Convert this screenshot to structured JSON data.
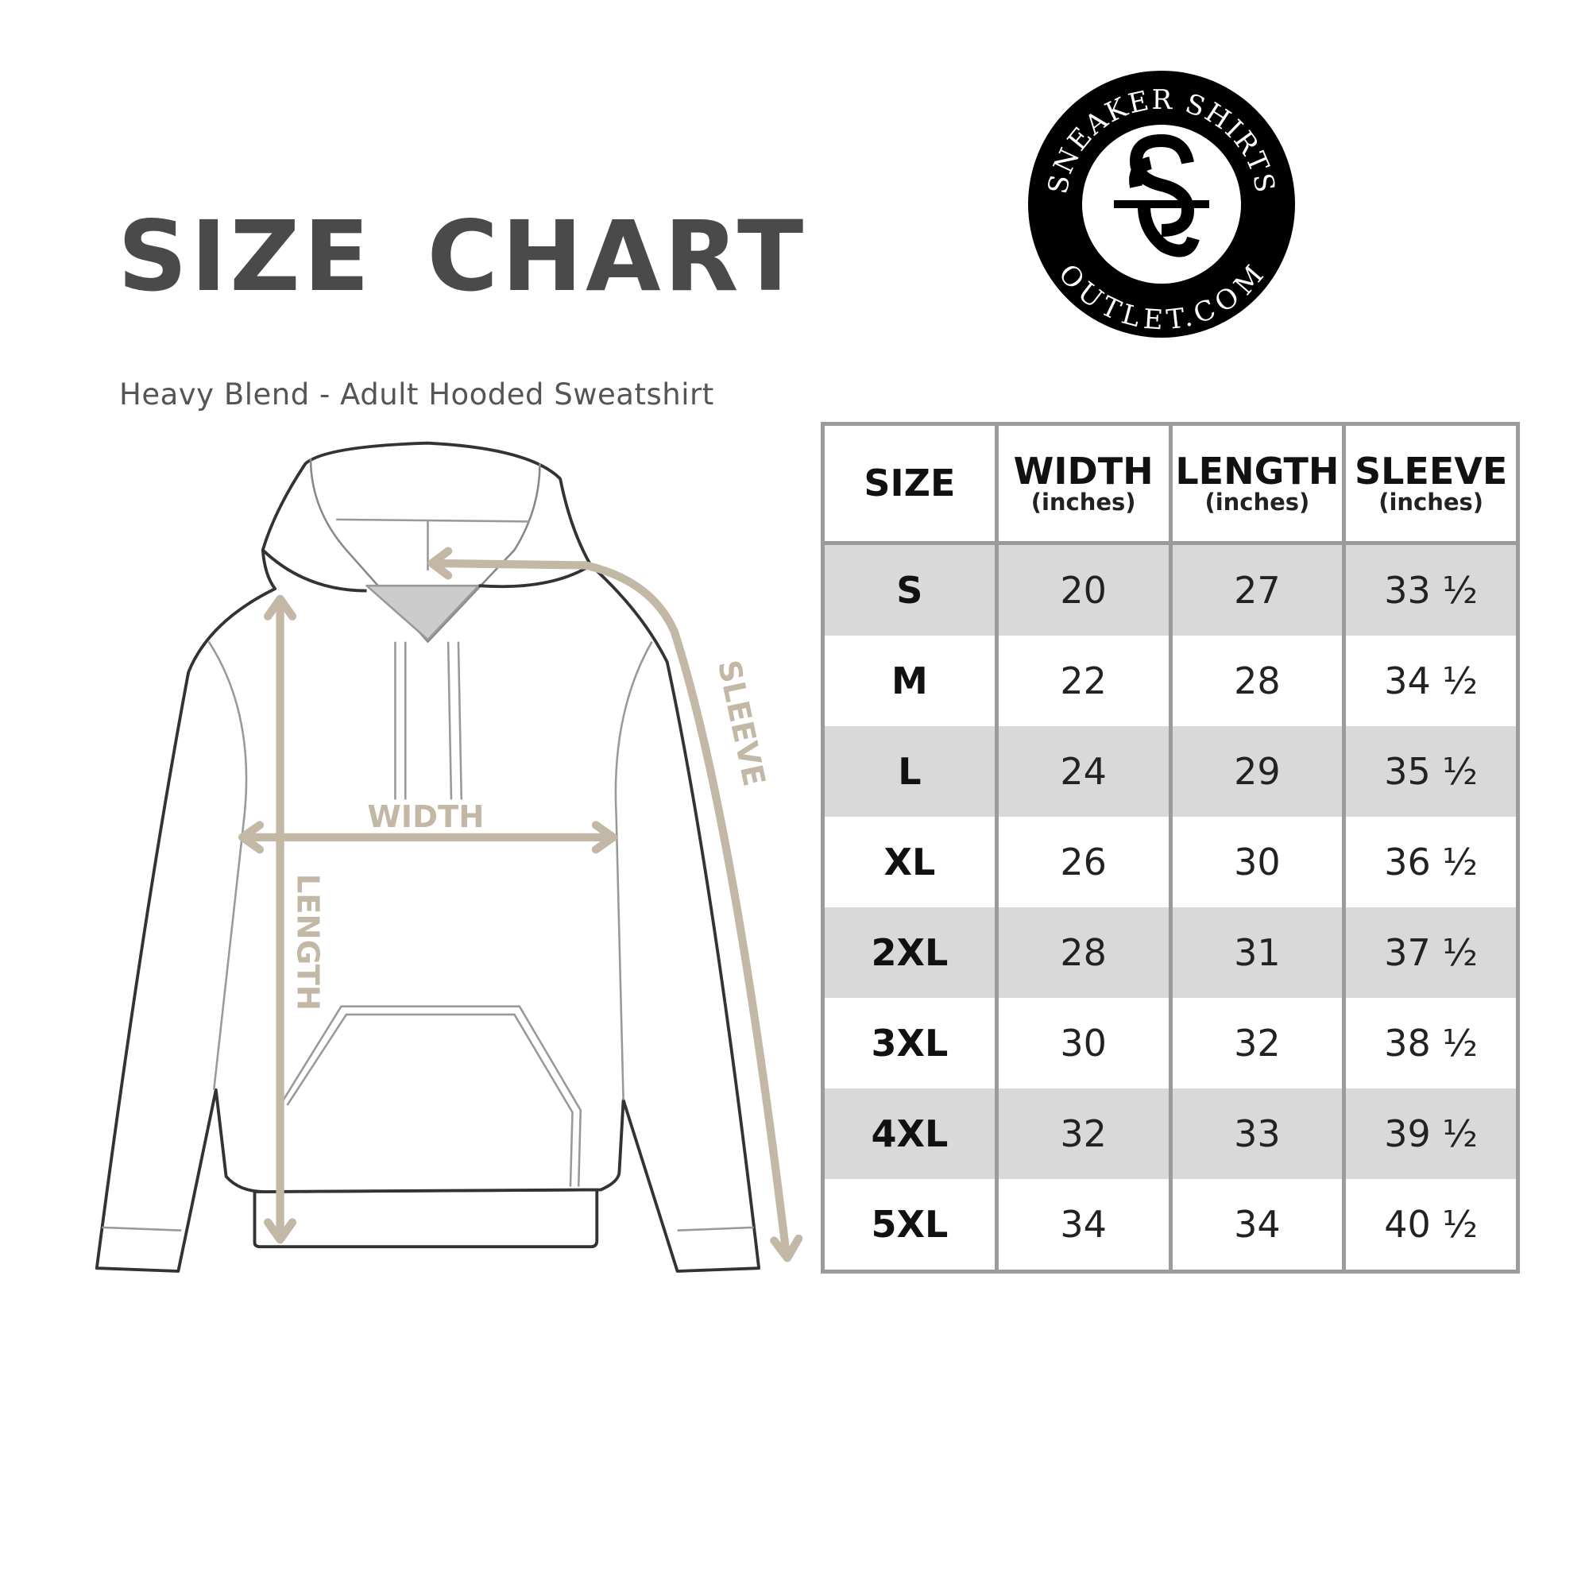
{
  "header": {
    "title": "SIZE CHART",
    "subtitle": "Heavy Blend - Adult Hooded Sweatshirt"
  },
  "logo": {
    "top_text": "SNEAKER SHIRTS",
    "bottom_text": "OUTLET.COM",
    "monogram": "SS"
  },
  "diagram": {
    "width_label": "WIDTH",
    "length_label": "LENGTH",
    "sleeve_label": "SLEEVE",
    "accent_color": "#c3b7a6"
  },
  "table": {
    "columns": [
      {
        "label": "SIZE",
        "unit": ""
      },
      {
        "label": "WIDTH",
        "unit": "(inches)"
      },
      {
        "label": "LENGTH",
        "unit": "(inches)"
      },
      {
        "label": "SLEEVE",
        "unit": "(inches)"
      }
    ],
    "rows": [
      {
        "size": "S",
        "width": "20",
        "length": "27",
        "sleeve": "33 ½"
      },
      {
        "size": "M",
        "width": "22",
        "length": "28",
        "sleeve": "34 ½"
      },
      {
        "size": "L",
        "width": "24",
        "length": "29",
        "sleeve": "35 ½"
      },
      {
        "size": "XL",
        "width": "26",
        "length": "30",
        "sleeve": "36 ½"
      },
      {
        "size": "2XL",
        "width": "28",
        "length": "31",
        "sleeve": "37 ½"
      },
      {
        "size": "3XL",
        "width": "30",
        "length": "32",
        "sleeve": "38 ½"
      },
      {
        "size": "4XL",
        "width": "32",
        "length": "33",
        "sleeve": "39 ½"
      },
      {
        "size": "5XL",
        "width": "34",
        "length": "34",
        "sleeve": "40 ½"
      }
    ],
    "shade_color": "#d9d9d9",
    "border_color": "#9b9b9b"
  }
}
